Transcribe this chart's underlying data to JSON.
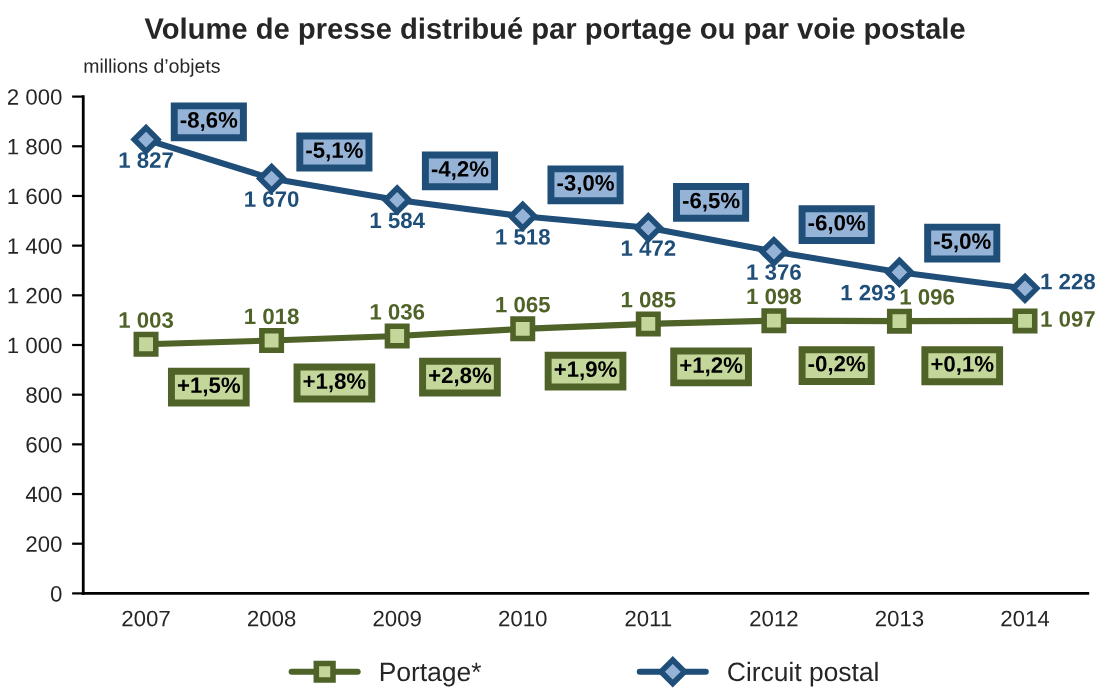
{
  "chart_data": {
    "type": "line",
    "title": "Volume de presse distribué par portage ou par voie postale",
    "ylabel": "millions d’objets",
    "categories": [
      "2007",
      "2008",
      "2009",
      "2010",
      "2011",
      "2012",
      "2013",
      "2014"
    ],
    "series": [
      {
        "name": "Portage*",
        "color": "#4f6228",
        "marker": "square",
        "values": [
          1003,
          1018,
          1036,
          1065,
          1085,
          1098,
          1096,
          1097
        ],
        "value_labels": [
          "1 003",
          "1 018",
          "1 036",
          "1 065",
          "1 085",
          "1 098",
          "1 096",
          "1 097"
        ]
      },
      {
        "name": "Circuit postal",
        "color": "#1f4e79",
        "marker": "diamond",
        "values": [
          1827,
          1670,
          1584,
          1518,
          1472,
          1376,
          1293,
          1228
        ],
        "value_labels": [
          "1 827",
          "1 670",
          "1 584",
          "1 518",
          "1 472",
          "1 376",
          "1 293",
          "1 228"
        ]
      }
    ],
    "annotations": [
      "+1,5%",
      "+1,8%",
      "+2,8%",
      "+1,9%",
      "+1,2%",
      "-0,2%",
      "+0,1%",
      "-8,6%",
      "-5,1%",
      "-4,2%",
      "-3,0%",
      "-6,5%",
      "-6,0%",
      "-5,0%"
    ],
    "ylim": [
      0,
      2000
    ],
    "yticks": [
      0,
      200,
      400,
      600,
      800,
      {
        "value": 1000,
        "label": "1 000"
      },
      {
        "value": 1200,
        "label": "1 200"
      },
      {
        "value": 1400,
        "label": "1 400"
      },
      {
        "value": 1600,
        "label": "1 600"
      },
      {
        "value": 1800,
        "label": "1 800"
      },
      {
        "value": 2000,
        "label": "2 000"
      }
    ],
    "grid": false,
    "legend": "bottom",
    "line_style": "solid"
  }
}
